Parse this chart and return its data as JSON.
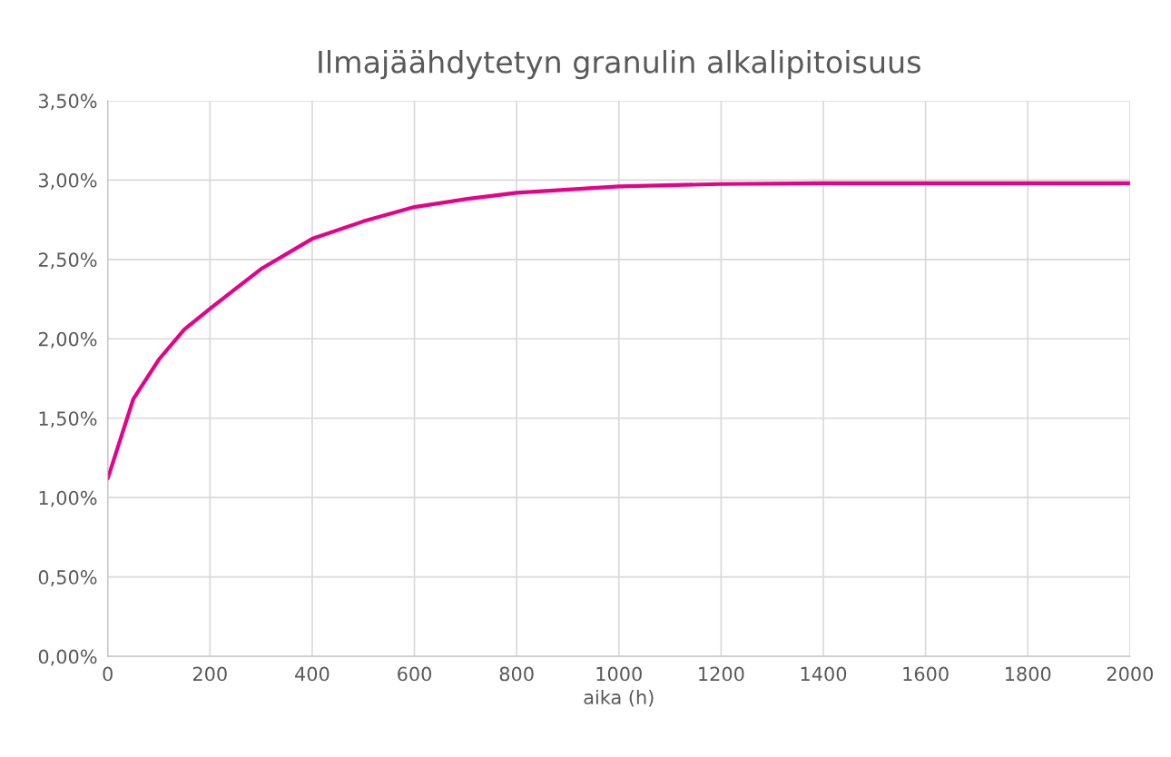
{
  "chart_data": {
    "type": "line",
    "title": "Ilmajäähdytetyn granulin alkalipitoisuus",
    "xlabel": "aika (h)",
    "x": [
      0,
      50,
      100,
      150,
      200,
      300,
      400,
      500,
      600,
      700,
      800,
      1000,
      1200,
      1400,
      1600,
      1800,
      2000
    ],
    "series": [
      {
        "color": "#e6008a",
        "values": [
          1.12,
          1.62,
          1.87,
          2.06,
          2.19,
          2.44,
          2.63,
          2.74,
          2.83,
          2.88,
          2.92,
          2.96,
          2.975,
          2.98,
          2.98,
          2.98,
          2.98
        ]
      }
    ],
    "xlim": [
      0,
      2000
    ],
    "xticks": [
      0,
      200,
      400,
      600,
      800,
      1000,
      1200,
      1400,
      1600,
      1800,
      2000
    ],
    "ylim": [
      0,
      3.5
    ],
    "yticks": [
      {
        "value": 0,
        "label": "0,00%"
      },
      {
        "value": 0.5,
        "label": "0,50%"
      },
      {
        "value": 1,
        "label": "1,00%"
      },
      {
        "value": 1.5,
        "label": "1,50%"
      },
      {
        "value": 2,
        "label": "2,00%"
      },
      {
        "value": 2.5,
        "label": "2,50%"
      },
      {
        "value": 3,
        "label": "3,00%"
      },
      {
        "value": 3.5,
        "label": "3,50%"
      }
    ],
    "grid": true,
    "marker": "none",
    "line_style": "solid",
    "legend": false
  }
}
